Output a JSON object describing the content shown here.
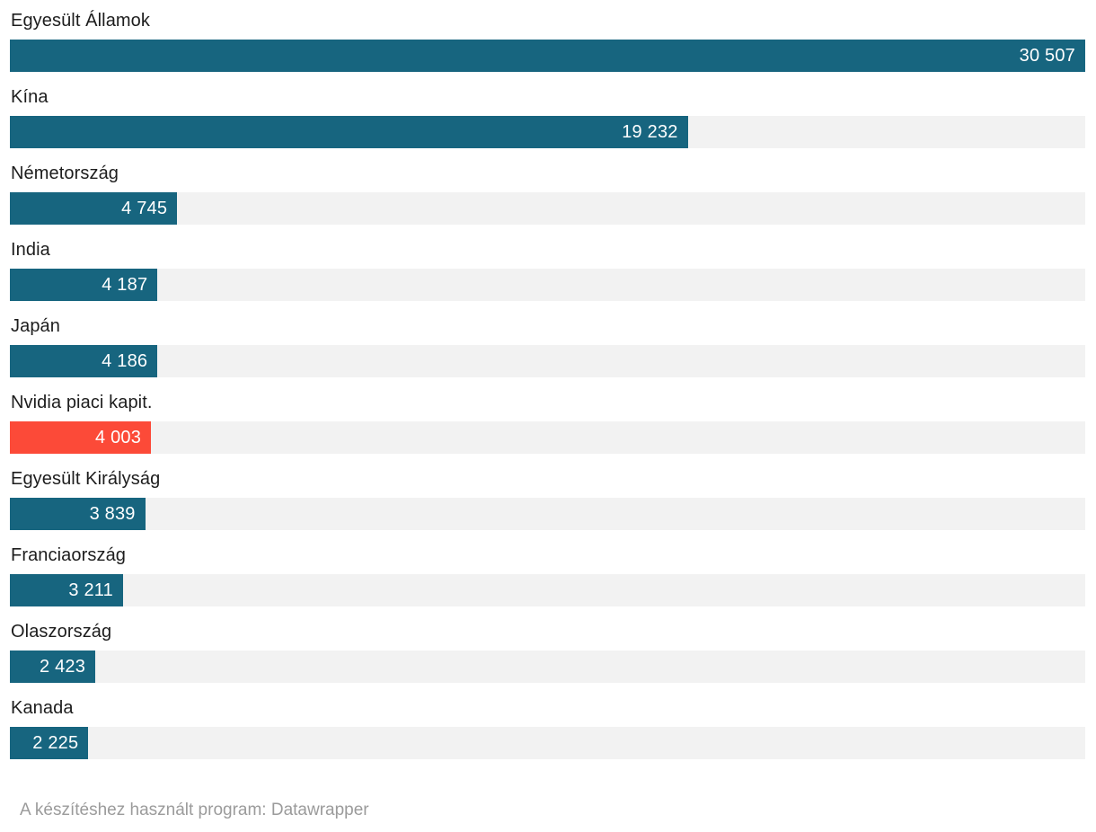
{
  "chart_data": {
    "type": "bar",
    "orientation": "horizontal",
    "title": "",
    "xlabel": "",
    "ylabel": "",
    "grid": false,
    "legend": "none",
    "xmax": 30507,
    "categories": [
      "Egyesült Államok",
      "Kína",
      "Németország",
      "India",
      "Japán",
      "Nvidia piaci kapit.",
      "Egyesült Királyság",
      "Franciaország",
      "Olaszország",
      "Kanada"
    ],
    "values": [
      30507,
      19232,
      4745,
      4187,
      4186,
      4003,
      3839,
      3211,
      2423,
      2225
    ],
    "value_labels": [
      "30 507",
      "19 232",
      "4 745",
      "4 187",
      "4 186",
      "4 003",
      "3 839",
      "3 211",
      "2 423",
      "2 225"
    ],
    "highlight_index": 5,
    "colors": {
      "bar": "#17657f",
      "highlight": "#fc4a38",
      "track": "#f2f2f2",
      "label_text": "#1d1d1d",
      "value_text": "#ffffff"
    }
  },
  "footer": {
    "attribution": "A készítéshez használt program: Datawrapper"
  }
}
